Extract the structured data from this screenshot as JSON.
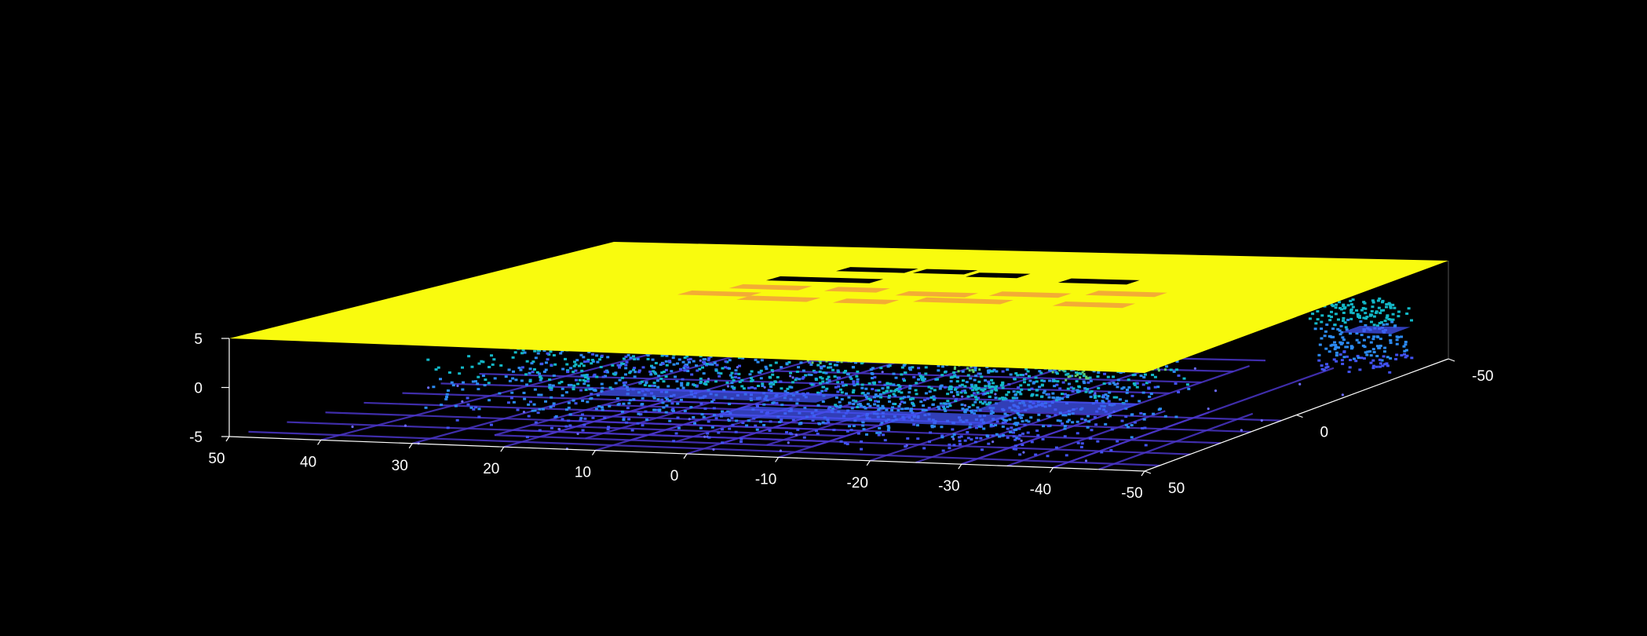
{
  "chart_data": {
    "type": "scatter3d",
    "title": "",
    "xlabel": "",
    "ylabel": "",
    "zlabel": "",
    "xlim": [
      -50,
      50
    ],
    "ylim": [
      -50,
      50
    ],
    "zlim": [
      -5,
      5
    ],
    "grid": "off",
    "background": "#000000",
    "axis_color": "#ffffff",
    "colormap": "parula",
    "colormap_stops": [
      "#3e26a8",
      "#4253f4",
      "#2c8bf3",
      "#13b8c7",
      "#61cb6f",
      "#d8ba31",
      "#f9bd3a",
      "#f9fb0e"
    ],
    "x_ticks": [
      {
        "value": 50,
        "label": "50"
      },
      {
        "value": 40,
        "label": "40"
      },
      {
        "value": 30,
        "label": "30"
      },
      {
        "value": 20,
        "label": "20"
      },
      {
        "value": 10,
        "label": "10"
      },
      {
        "value": 0,
        "label": "0"
      },
      {
        "value": -10,
        "label": "-10"
      },
      {
        "value": -20,
        "label": "-20"
      },
      {
        "value": -30,
        "label": "-30"
      },
      {
        "value": -40,
        "label": "-40"
      },
      {
        "value": -50,
        "label": "-50"
      }
    ],
    "y_ticks": [
      {
        "value": 50,
        "label": "50"
      },
      {
        "value": 0,
        "label": "0"
      },
      {
        "value": -50,
        "label": "-50"
      }
    ],
    "z_ticks": [
      {
        "value": 5,
        "label": "5"
      },
      {
        "value": 0,
        "label": "0"
      },
      {
        "value": -5,
        "label": "-5"
      }
    ],
    "layers": [
      {
        "name": "ceiling-plane",
        "z": 5,
        "color": "#f9fb0e"
      },
      {
        "name": "floor-grid",
        "z": -5,
        "color": "#4a35c8"
      },
      {
        "name": "mid-structures",
        "z_range": [
          -4.5,
          3
        ],
        "color_range": [
          "#4253f4",
          "#13b8c7"
        ]
      },
      {
        "name": "pillars",
        "z_range": [
          -2,
          4
        ],
        "color": "#e8a83c"
      }
    ]
  }
}
